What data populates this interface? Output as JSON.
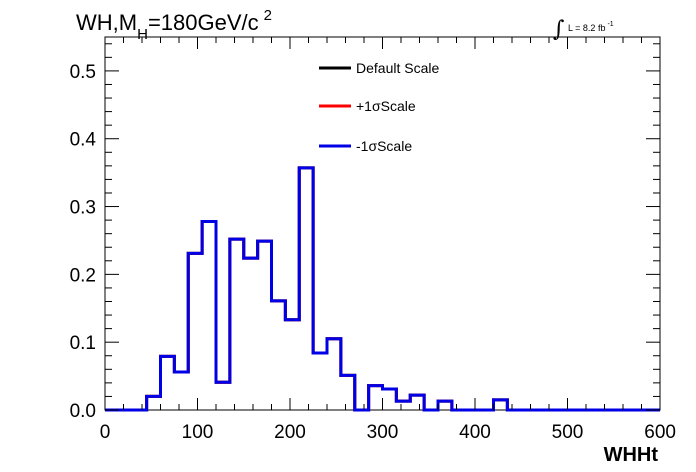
{
  "chart_data": {
    "type": "step",
    "title": {
      "prefix": "WH,M",
      "subscript": "H",
      "main": "=180GeV/c",
      "superscript": "2"
    },
    "luminosity": {
      "integral": "∫",
      "text": "L = 8.2 fb",
      "superscript": "-1"
    },
    "xlabel": "WHHt",
    "ylabel": "",
    "xlim": [
      0,
      600
    ],
    "ylim": [
      0,
      0.55
    ],
    "xticks": [
      0,
      100,
      200,
      300,
      400,
      500,
      600
    ],
    "xtick_labels": [
      "0",
      "100",
      "200",
      "300",
      "400",
      "500",
      "600"
    ],
    "yticks": [
      0,
      0.1,
      0.2,
      0.3,
      0.4,
      0.5
    ],
    "ytick_labels": [
      "0.0",
      "0.1",
      "0.2",
      "0.3",
      "0.4",
      "0.5"
    ],
    "bin_edges": [
      0,
      15,
      30,
      45,
      60,
      75,
      90,
      105,
      120,
      135,
      150,
      165,
      180,
      195,
      210,
      225,
      240,
      255,
      270,
      285,
      300,
      315,
      330,
      345,
      360,
      375,
      390,
      405,
      420,
      435,
      450,
      465,
      480,
      495,
      510,
      525,
      540,
      555,
      570,
      585,
      600
    ],
    "series": [
      {
        "name": "Default Scale",
        "color": "#000000",
        "values": [
          0,
          0,
          0,
          0.02,
          0.079,
          0.056,
          0.231,
          0.278,
          0.041,
          0.252,
          0.224,
          0.249,
          0.161,
          0.133,
          0.357,
          0.084,
          0.105,
          0.051,
          0,
          0.036,
          0.031,
          0.013,
          0.022,
          0,
          0.013,
          0,
          0,
          0,
          0,
          0,
          0,
          0,
          0,
          0,
          0,
          0,
          0,
          0,
          0,
          0
        ]
      },
      {
        "name": "+1σScale",
        "color": "#ff0000",
        "values": [
          0,
          0,
          0,
          0.02,
          0.079,
          0.056,
          0.231,
          0.278,
          0.041,
          0.252,
          0.224,
          0.249,
          0.161,
          0.133,
          0.357,
          0.084,
          0.105,
          0.051,
          0,
          0.036,
          0.031,
          0.013,
          0.022,
          0,
          0.013,
          0,
          0,
          0,
          0,
          0,
          0,
          0,
          0,
          0,
          0,
          0,
          0,
          0,
          0,
          0
        ]
      },
      {
        "name": "-1σScale",
        "color": "#0000e6",
        "values": [
          0,
          0,
          0,
          0.02,
          0.079,
          0.056,
          0.231,
          0.278,
          0.041,
          0.252,
          0.224,
          0.249,
          0.161,
          0.133,
          0.357,
          0.084,
          0.105,
          0.051,
          0,
          0.036,
          0.031,
          0.013,
          0.022,
          0,
          0.013,
          0,
          0,
          0,
          0,
          0,
          0,
          0,
          0,
          0,
          0,
          0,
          0,
          0,
          0,
          0
        ]
      }
    ],
    "extra_bins": [
      {
        "x_low": 420,
        "x_high": 435,
        "value": 0.015
      }
    ],
    "legend_position": "top-center",
    "grid": false
  }
}
